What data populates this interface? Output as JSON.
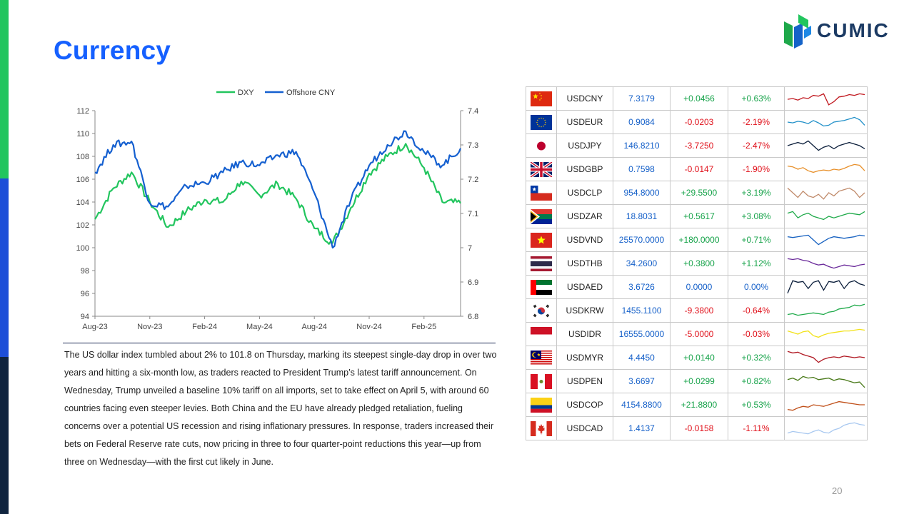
{
  "page": {
    "title": "Currency",
    "brand": "CUMIC",
    "page_number": "20",
    "commentary": "The US dollar index tumbled about 2% to 101.8 on Thursday, marking its steepest single-day drop in over two years and hitting a six-month low, as traders reacted to President Trump’s latest tariff announcement. On Wednesday, Trump unveiled a baseline 10% tariff on all imports, set to take effect on April 5, with around 60 countries facing even steeper levies. Both China and the EU have already pledged retaliation, fueling concerns over a potential US recession and rising inflationary pressures. In response, traders increased their bets on Federal Reserve rate cuts, now pricing in three to four quarter-point reductions this year—up from three on Wednesday—with the first cut likely in June."
  },
  "colors": {
    "dxy": "#22c55e",
    "cny": "#1560d0",
    "title": "#1560ff",
    "positive": "#17a34a",
    "negative": "#e0101a"
  },
  "chart_data": {
    "type": "line",
    "x": [
      "Aug-23",
      "Sep-23",
      "Oct-23",
      "Nov-23",
      "Dec-23",
      "Jan-24",
      "Feb-24",
      "Mar-24",
      "Apr-24",
      "May-24",
      "Jun-24",
      "Jul-24",
      "Aug-24",
      "Sep-24",
      "Oct-24",
      "Nov-24",
      "Dec-24",
      "Jan-25",
      "Feb-25",
      "Mar-25",
      "Apr-25"
    ],
    "x_tick_labels": [
      "Aug-23",
      "Nov-23",
      "Feb-24",
      "May-24",
      "Aug-24",
      "Nov-24",
      "Feb-25"
    ],
    "series": [
      {
        "name": "DXY",
        "axis": "left",
        "values": [
          102.5,
          105.2,
          106.6,
          104.0,
          101.8,
          103.2,
          104.2,
          104.0,
          105.8,
          104.6,
          105.6,
          104.3,
          101.7,
          100.4,
          103.5,
          106.5,
          108.0,
          109.1,
          107.0,
          104.0,
          103.9
        ]
      },
      {
        "name": "Offshore CNY",
        "axis": "right",
        "values": [
          7.22,
          7.3,
          7.31,
          7.13,
          7.12,
          7.18,
          7.19,
          7.22,
          7.25,
          7.24,
          7.27,
          7.28,
          7.16,
          7.0,
          7.14,
          7.24,
          7.3,
          7.34,
          7.28,
          7.24,
          7.29
        ]
      }
    ],
    "y_left": {
      "lim": [
        94,
        112
      ],
      "ticks": [
        "94",
        "96",
        "98",
        "100",
        "102",
        "104",
        "106",
        "108",
        "110",
        "112"
      ]
    },
    "y_right": {
      "lim": [
        6.8,
        7.4
      ],
      "ticks": [
        "6.8",
        "6.9",
        "7",
        "7.1",
        "7.2",
        "7.3",
        "7.4"
      ]
    },
    "legend": "top-center",
    "grid": false
  },
  "table": {
    "rows": [
      {
        "flag": "cn-flag",
        "pair": "USDCNY",
        "price": "7.3179",
        "change": "+0.0456",
        "pct": "+0.63%",
        "dir": "pos",
        "spark_color": "#c0161d",
        "spark": [
          0.55,
          0.5,
          0.6,
          0.45,
          0.5,
          0.3,
          0.35,
          0.2,
          0.9,
          0.7,
          0.4,
          0.35,
          0.25,
          0.3,
          0.2,
          0.25
        ]
      },
      {
        "flag": "eu-flag",
        "pair": "USDEUR",
        "price": "0.9084",
        "change": "-0.0203",
        "pct": "-2.19%",
        "dir": "neg",
        "spark_color": "#1f8fc8",
        "spark": [
          0.5,
          0.55,
          0.45,
          0.5,
          0.6,
          0.4,
          0.55,
          0.75,
          0.7,
          0.5,
          0.45,
          0.4,
          0.3,
          0.2,
          0.35,
          0.7
        ]
      },
      {
        "flag": "jp-flag",
        "pair": "USDJPY",
        "price": "146.8210",
        "change": "-3.7250",
        "pct": "-2.47%",
        "dir": "neg",
        "spark_color": "#0a1d3a",
        "spark": [
          0.5,
          0.4,
          0.3,
          0.4,
          0.2,
          0.5,
          0.8,
          0.6,
          0.5,
          0.7,
          0.5,
          0.4,
          0.3,
          0.4,
          0.5,
          0.7
        ]
      },
      {
        "flag": "gb-flag",
        "pair": "USDGBP",
        "price": "0.7598",
        "change": "-0.0147",
        "pct": "-1.90%",
        "dir": "neg",
        "spark_color": "#e8902a",
        "spark": [
          0.3,
          0.35,
          0.5,
          0.4,
          0.6,
          0.7,
          0.6,
          0.55,
          0.6,
          0.5,
          0.55,
          0.45,
          0.3,
          0.2,
          0.25,
          0.6
        ]
      },
      {
        "flag": "cl-flag",
        "pair": "USDCLP",
        "price": "954.8000",
        "change": "+29.5500",
        "pct": "+3.19%",
        "dir": "pos",
        "spark_color": "#c08a6a",
        "spark": [
          0.2,
          0.5,
          0.8,
          0.4,
          0.7,
          0.8,
          0.6,
          0.9,
          0.5,
          0.7,
          0.4,
          0.3,
          0.2,
          0.4,
          0.8,
          0.5
        ]
      },
      {
        "flag": "za-flag",
        "pair": "USDZAR",
        "price": "18.8031",
        "change": "+0.5617",
        "pct": "+3.08%",
        "dir": "pos",
        "spark_color": "#1faa4a",
        "spark": [
          0.3,
          0.2,
          0.6,
          0.4,
          0.3,
          0.5,
          0.6,
          0.7,
          0.5,
          0.6,
          0.5,
          0.4,
          0.3,
          0.35,
          0.4,
          0.2
        ]
      },
      {
        "flag": "vn-flag",
        "pair": "USDVND",
        "price": "25570.0000",
        "change": "+180.0000",
        "pct": "+0.71%",
        "dir": "pos",
        "spark_color": "#1560c0",
        "spark": [
          0.3,
          0.35,
          0.3,
          0.25,
          0.2,
          0.5,
          0.8,
          0.6,
          0.4,
          0.3,
          0.35,
          0.4,
          0.35,
          0.3,
          0.2,
          0.25
        ]
      },
      {
        "flag": "th-flag",
        "pair": "USDTHB",
        "price": "34.2600",
        "change": "+0.3800",
        "pct": "+1.12%",
        "dir": "pos",
        "spark_color": "#6a2a9a",
        "spark": [
          0.2,
          0.25,
          0.2,
          0.3,
          0.35,
          0.5,
          0.6,
          0.55,
          0.7,
          0.8,
          0.7,
          0.6,
          0.65,
          0.7,
          0.6,
          0.55
        ]
      },
      {
        "flag": "ae-flag",
        "pair": "USDAED",
        "price": "3.6726",
        "change": "0.0000",
        "pct": "0.00%",
        "dir": "zero",
        "spark_color": "#0a1d3a",
        "spark": [
          0.9,
          0.1,
          0.2,
          0.15,
          0.6,
          0.2,
          0.1,
          0.7,
          0.15,
          0.2,
          0.1,
          0.6,
          0.2,
          0.1,
          0.3,
          0.4
        ]
      },
      {
        "flag": "kr-flag",
        "pair": "USDKRW",
        "price": "1455.1100",
        "change": "-9.3800",
        "pct": "-0.64%",
        "dir": "neg",
        "spark_color": "#1faa4a",
        "spark": [
          0.75,
          0.7,
          0.8,
          0.75,
          0.7,
          0.65,
          0.7,
          0.75,
          0.6,
          0.55,
          0.4,
          0.35,
          0.3,
          0.15,
          0.2,
          0.1
        ]
      },
      {
        "flag": "id-flag",
        "pair": "USDIDR",
        "price": "16555.0000",
        "change": "-5.0000",
        "pct": "-0.03%",
        "dir": "neg",
        "spark_color": "#f2e21a",
        "spark": [
          0.3,
          0.4,
          0.5,
          0.35,
          0.3,
          0.6,
          0.7,
          0.55,
          0.45,
          0.4,
          0.35,
          0.3,
          0.3,
          0.25,
          0.2,
          0.25
        ]
      },
      {
        "flag": "my-flag",
        "pair": "USDMYR",
        "price": "4.4450",
        "change": "+0.0140",
        "pct": "+0.32%",
        "dir": "pos",
        "spark_color": "#b01822",
        "spark": [
          0.1,
          0.2,
          0.15,
          0.3,
          0.4,
          0.5,
          0.8,
          0.6,
          0.5,
          0.45,
          0.5,
          0.4,
          0.45,
          0.5,
          0.45,
          0.5
        ]
      },
      {
        "flag": "pe-flag",
        "pair": "USDPEN",
        "price": "3.6697",
        "change": "+0.0299",
        "pct": "+0.82%",
        "dir": "pos",
        "spark_color": "#4a7a1a",
        "spark": [
          0.4,
          0.3,
          0.45,
          0.2,
          0.3,
          0.25,
          0.4,
          0.35,
          0.3,
          0.45,
          0.35,
          0.4,
          0.5,
          0.6,
          0.55,
          0.9
        ]
      },
      {
        "flag": "co-flag",
        "pair": "USDCOP",
        "price": "4154.8800",
        "change": "+21.8800",
        "pct": "+0.53%",
        "dir": "pos",
        "spark_color": "#c0501a",
        "spark": [
          0.8,
          0.85,
          0.7,
          0.6,
          0.65,
          0.5,
          0.55,
          0.6,
          0.5,
          0.4,
          0.3,
          0.35,
          0.4,
          0.45,
          0.5,
          0.5
        ]
      },
      {
        "flag": "ca-flag",
        "pair": "USDCAD",
        "price": "1.4137",
        "change": "-0.0158",
        "pct": "-1.11%",
        "dir": "neg",
        "spark_color": "#a8c8f0",
        "spark": [
          0.8,
          0.7,
          0.75,
          0.8,
          0.85,
          0.7,
          0.6,
          0.75,
          0.8,
          0.6,
          0.5,
          0.3,
          0.2,
          0.15,
          0.25,
          0.3
        ]
      }
    ]
  }
}
